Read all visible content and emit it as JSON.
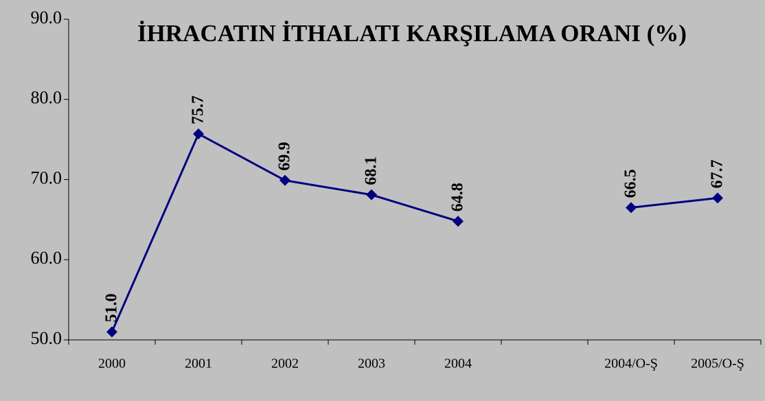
{
  "chart_data": {
    "type": "line",
    "title": "İHRACATIN İTHALATI KARŞILAMA ORANI (%)",
    "categories": [
      "2000",
      "2001",
      "2002",
      "2003",
      "2004",
      null,
      "2004/O-Ş",
      "2005/O-Ş"
    ],
    "series": [
      {
        "name": null,
        "color": "#000080",
        "values": [
          51.0,
          75.7,
          69.9,
          68.1,
          64.8,
          null,
          66.5,
          67.7
        ],
        "value_labels": [
          "51.0",
          "75.7",
          "69.9",
          "68.1",
          "64.8",
          null,
          "66.5",
          "67.7"
        ]
      }
    ],
    "ylim": [
      50,
      90
    ],
    "yticks": [
      {
        "value": 50,
        "label": "50.0"
      },
      {
        "value": 60,
        "label": "60.0"
      },
      {
        "value": 70,
        "label": "70.0"
      },
      {
        "value": 80,
        "label": "80.0"
      },
      {
        "value": 90,
        "label": "90.0"
      }
    ],
    "grid": false
  }
}
